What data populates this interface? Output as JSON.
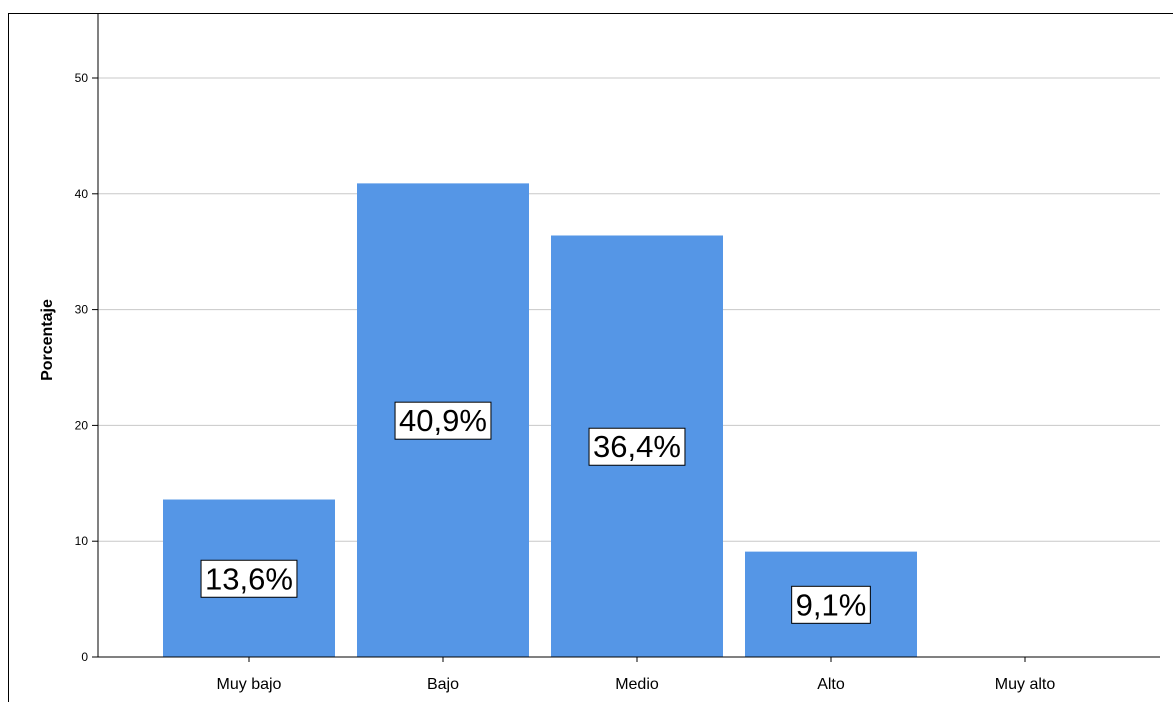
{
  "chart_data": {
    "type": "bar",
    "title": "",
    "xlabel": "",
    "ylabel": "Porcentaje",
    "categories": [
      "Muy bajo",
      "Bajo",
      "Medio",
      "Alto",
      "Muy alto"
    ],
    "values": [
      13.6,
      40.9,
      36.4,
      9.1,
      0
    ],
    "data_labels": [
      "13,6%",
      "40,9%",
      "36,4%",
      "9,1%",
      ""
    ],
    "yticks": [
      0,
      10,
      20,
      30,
      40,
      50
    ],
    "ylim": [
      0,
      55
    ],
    "grid": true,
    "colors": {
      "bar": "#5596e6",
      "grid": "#c8c8c8",
      "axis": "#000000",
      "label_bg": "#ffffff"
    }
  }
}
